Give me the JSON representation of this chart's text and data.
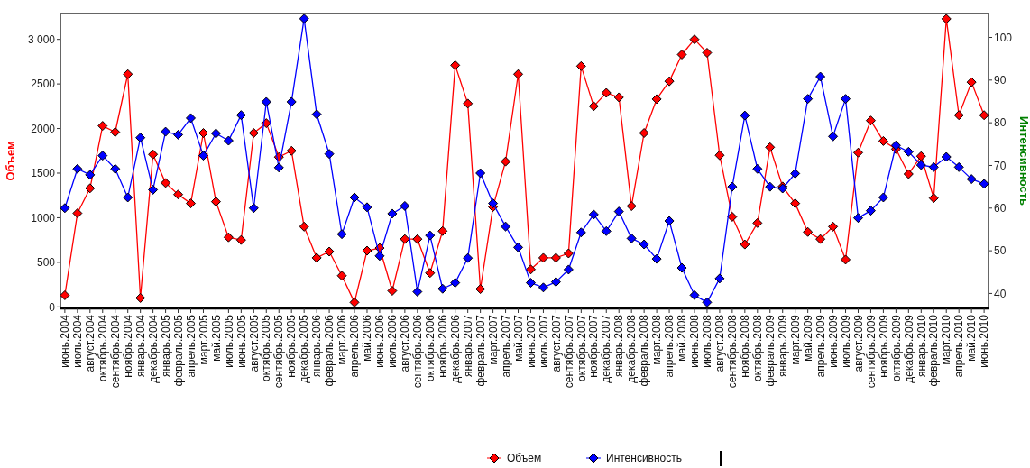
{
  "chart_data": {
    "type": "line",
    "ylabel": "Объем",
    "y2label": "Интенсивность",
    "marker": "diamond",
    "legend": "bottom",
    "categories": [
      "июнь.2004",
      "июль.2004",
      "август.2004",
      "октябрь.2004",
      "сентябрь.2004",
      "ноябрь.2004",
      "январь.2004",
      "декабрь.2004",
      "январь.2005",
      "февраль.2005",
      "апрель.2005",
      "март.2005",
      "май.2005",
      "июль.2005",
      "июнь.2005",
      "август.2005",
      "октябрь.2005",
      "сентябрь.2005",
      "ноябрь.2005",
      "декабрь.2005",
      "январь.2006",
      "февраль.2006",
      "март.2006",
      "апрель.2006",
      "май.2006",
      "июнь.2006",
      "июль.2006",
      "август.2006",
      "сентябрь.2006",
      "октябрь.2006",
      "ноябрь.2006",
      "декабрь.2006",
      "январь.2007",
      "февраль.2007",
      "март.2007",
      "апрель.2007",
      "май.2007",
      "июнь.2007",
      "июль.2007",
      "август.2007",
      "сентябрь.2007",
      "октябрь.2007",
      "ноябрь.2007",
      "декабрь.2007",
      "январь.2008",
      "декабрь.2008",
      "февраль.2008",
      "март.2008",
      "апрель.2008",
      "май.2008",
      "июнь.2008",
      "июль.2008",
      "август.2008",
      "сентябрь.2008",
      "ноябрь.2008",
      "октябрь.2008",
      "февраль.2009",
      "январь.2009",
      "март.2009",
      "май.2009",
      "апрель.2009",
      "июнь.2009",
      "июль.2009",
      "август.2009",
      "сентябрь.2009",
      "ноябрь.2009",
      "октябрь.2009",
      "декабрь.2009",
      "январь.2010",
      "февраль.2010",
      "март.2010",
      "апрель.2010",
      "май.2010",
      "июнь.2010"
    ],
    "series": [
      {
        "name": "Объем",
        "color": "#ff0000",
        "values": [
          130,
          1050,
          1330,
          2030,
          1960,
          2610,
          100,
          1710,
          1390,
          1260,
          1160,
          1950,
          1180,
          780,
          750,
          1950,
          2060,
          1680,
          1750,
          900,
          550,
          620,
          350,
          50,
          630,
          660,
          180,
          760,
          760,
          380,
          850,
          2710,
          2280,
          200,
          1120,
          1630,
          2610,
          420,
          550,
          550,
          600,
          2700,
          2250,
          2400,
          2350,
          1130,
          1950,
          2330,
          2530,
          2830,
          3000,
          2850,
          1700,
          1010,
          700,
          940,
          1790,
          1350,
          1160,
          840,
          760,
          900,
          530,
          1730,
          2090,
          1860,
          1770,
          1490,
          1690,
          1220,
          3230,
          2150,
          2520,
          2150
        ]
      },
      {
        "name": "Интенсивность",
        "color": "#0000ff",
        "axis": "y2",
        "values": [
          60,
          69.2,
          67.8,
          72.3,
          69.2,
          62.5,
          76.5,
          64.3,
          77.9,
          77.2,
          81.1,
          72.3,
          77.5,
          75.8,
          81.8,
          60,
          84.9,
          69.5,
          84.9,
          104.4,
          82,
          72.7,
          53.9,
          62.5,
          60.2,
          48.8,
          58.7,
          60.5,
          40.4,
          53.6,
          41.1,
          42.5,
          48.3,
          68.2,
          61.1,
          55.7,
          50.8,
          42.5,
          41.4,
          42.7,
          45.6,
          54.3,
          58.5,
          54.6,
          59.2,
          52.9,
          51.5,
          48.1,
          57,
          46,
          39.6,
          37.9,
          43.5,
          65,
          81.7,
          69.2,
          65,
          64.6,
          68.1,
          85.6,
          90.8,
          76.8,
          85.6,
          57.7,
          59.4,
          62.5,
          74.7,
          73.2,
          70.1,
          69.6,
          72,
          69.6,
          66.8,
          65.7
        ]
      }
    ],
    "ylim": [
      -17,
      3290
    ],
    "yticks": [
      0,
      500,
      1000,
      1500,
      2000,
      2500,
      {
        "value": 3000,
        "label": "3 000"
      }
    ],
    "y2lim": [
      36.5,
      105.6
    ],
    "y2ticks": [
      40,
      50,
      60,
      70,
      80,
      90,
      100
    ]
  }
}
